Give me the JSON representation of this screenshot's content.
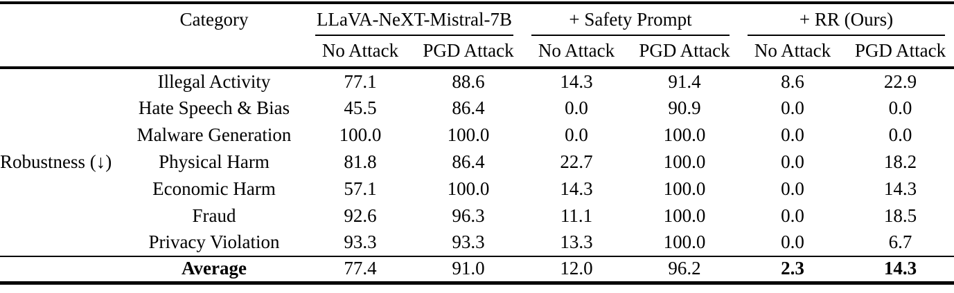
{
  "table": {
    "row_group_label": "Robustness (↓)",
    "category_header": "Category",
    "groups": [
      {
        "label": "LLaVA-NeXT-Mistral-7B"
      },
      {
        "label": "+ Safety Prompt"
      },
      {
        "label": "+ RR (Ours)"
      }
    ],
    "sub_headers": [
      "No Attack",
      "PGD Attack",
      "No Attack",
      "PGD Attack",
      "No Attack",
      "PGD Attack"
    ],
    "rows": [
      {
        "category": "Illegal Activity",
        "values": [
          "77.1",
          "88.6",
          "14.3",
          "91.4",
          "8.6",
          "22.9"
        ]
      },
      {
        "category": "Hate Speech & Bias",
        "values": [
          "45.5",
          "86.4",
          "0.0",
          "90.9",
          "0.0",
          "0.0"
        ]
      },
      {
        "category": "Malware Generation",
        "values": [
          "100.0",
          "100.0",
          "0.0",
          "100.0",
          "0.0",
          "0.0"
        ]
      },
      {
        "category": "Physical Harm",
        "values": [
          "81.8",
          "86.4",
          "22.7",
          "100.0",
          "0.0",
          "18.2"
        ]
      },
      {
        "category": "Economic Harm",
        "values": [
          "57.1",
          "100.0",
          "14.3",
          "100.0",
          "0.0",
          "14.3"
        ]
      },
      {
        "category": "Fraud",
        "values": [
          "92.6",
          "96.3",
          "11.1",
          "100.0",
          "0.0",
          "18.5"
        ]
      },
      {
        "category": "Privacy Violation",
        "values": [
          "93.3",
          "93.3",
          "13.3",
          "100.0",
          "0.0",
          "6.7"
        ]
      }
    ],
    "average_row": {
      "label": "Average",
      "values": [
        "77.4",
        "91.0",
        "12.0",
        "96.2",
        "2.3",
        "14.3"
      ]
    },
    "text_color": "#000000",
    "background_color": "#ffffff"
  }
}
